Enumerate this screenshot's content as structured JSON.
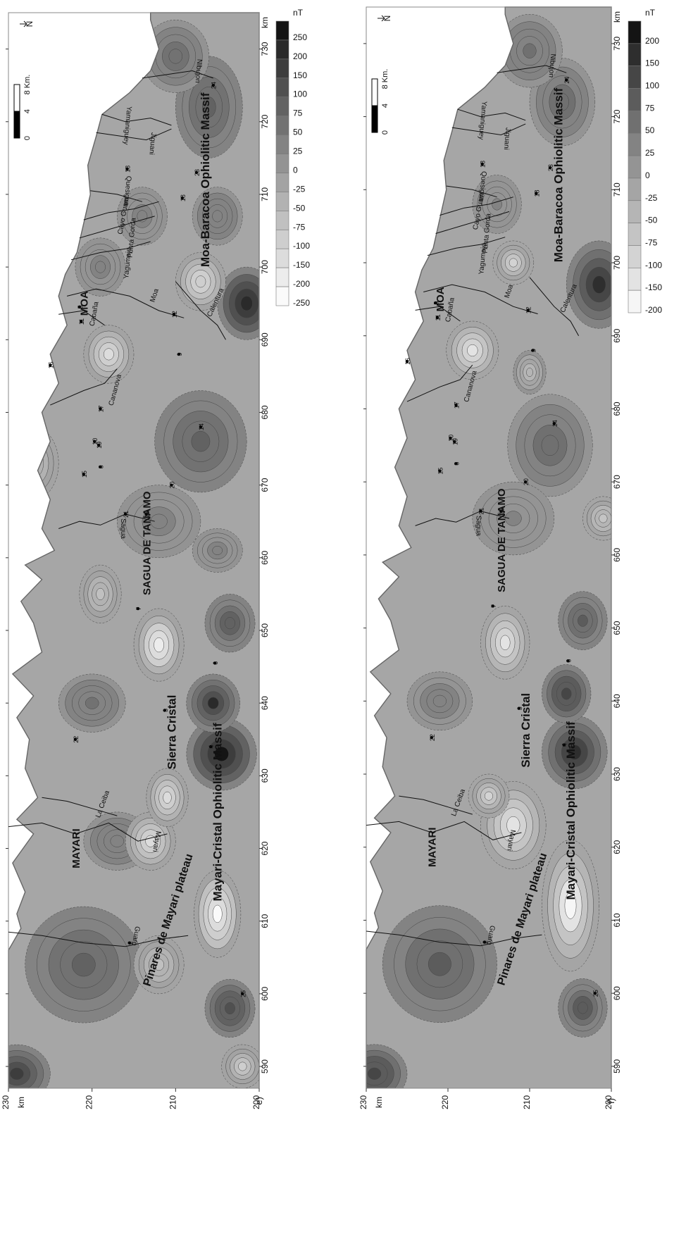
{
  "maps": [
    {
      "panel_label": "e)",
      "units": "nT",
      "axis_unit": "km",
      "easting_ticks": [
        "590",
        "600",
        "610",
        "620",
        "630",
        "640",
        "650",
        "660",
        "670",
        "680",
        "690",
        "700",
        "710",
        "720",
        "730"
      ],
      "northing_ticks": [
        "230",
        "220",
        "210",
        "200"
      ],
      "legend_values": [
        "250",
        "200",
        "150",
        "100",
        "75",
        "50",
        "25",
        "0",
        "-25",
        "-50",
        "-75",
        "-100",
        "-150",
        "-200",
        "-250"
      ],
      "legend_colors": [
        "#141414",
        "#2a2a2a",
        "#3d3d3d",
        "#505050",
        "#626262",
        "#727272",
        "#838383",
        "#939393",
        "#a3a3a3",
        "#b2b2b2",
        "#c0c0c0",
        "#cecece",
        "#dcdcdc",
        "#ececec",
        "#fafafa"
      ],
      "scale_labels": [
        "0",
        "4",
        "8 Km."
      ],
      "north_label": "N",
      "region_labels": [
        "MAYARI",
        "SAGUA DE TANAMO",
        "MOA",
        "Sierra Cristal",
        "Moa-Baracoa Ophiolitic Massif",
        "Mayari-Cristal Ophiolitic Massif",
        "Pinares de Mayari plateau"
      ],
      "river_labels": [
        "Guaro",
        "Mayari",
        "La Ceiba",
        "Sagua",
        "Cananova",
        "Moa",
        "Cabaña",
        "Calentura",
        "Yagumaje",
        "Punta Gorda",
        "Cayo Guam",
        "Quesigua",
        "Jiguani",
        "Yamaniguey",
        "Nibujon"
      ],
      "station_labels": [
        "2",
        "3",
        "4",
        "5",
        "6",
        "7",
        "8",
        "9",
        "10",
        "11",
        "12",
        "13",
        "14",
        "15",
        "16",
        "17",
        "18",
        "18",
        "19",
        "20",
        "21",
        "22",
        "23",
        "24",
        "25"
      ]
    },
    {
      "panel_label": "f)",
      "units": "nT",
      "axis_unit": "km",
      "easting_ticks": [
        "590",
        "600",
        "610",
        "620",
        "630",
        "640",
        "650",
        "660",
        "670",
        "680",
        "690",
        "700",
        "710",
        "720",
        "730"
      ],
      "northing_ticks": [
        "230",
        "220",
        "210",
        "200"
      ],
      "legend_values": [
        "200",
        "150",
        "100",
        "75",
        "50",
        "25",
        "0",
        "-25",
        "-50",
        "-75",
        "-100",
        "-150",
        "-200"
      ],
      "legend_colors": [
        "#141414",
        "#2e2e2e",
        "#464646",
        "#5c5c5c",
        "#707070",
        "#838383",
        "#949494",
        "#a5a5a5",
        "#b5b5b5",
        "#c4c4c4",
        "#d3d3d3",
        "#e3e3e3",
        "#f6f6f6"
      ],
      "scale_labels": [
        "0",
        "4",
        "8 Km."
      ],
      "north_label": "N",
      "region_labels": [
        "MAYARI",
        "SAGUA DE TANAMO",
        "MOA",
        "Sierra Cristal",
        "Moa-Baracoa Ophiolitic Massif",
        "Mayari-Cristal Ophiolitic Massif",
        "Pinares de Mayari plateau"
      ],
      "river_labels": [
        "Guaro",
        "Mayari",
        "La Ceiba",
        "Sagua",
        "Cananova",
        "Moa",
        "Cabaña",
        "Calentura",
        "Yagumaje",
        "Punta Gorda",
        "Cayo Guam",
        "Quesigua",
        "Jiguani",
        "Yamaniguey",
        "Nibujon"
      ],
      "station_labels": [
        "2",
        "3",
        "4",
        "5",
        "6",
        "7",
        "8",
        "9",
        "10",
        "11",
        "12",
        "13",
        "14",
        "15",
        "16",
        "17",
        "18",
        "18",
        "19",
        "20",
        "21",
        "22",
        "23",
        "24",
        "25"
      ]
    }
  ]
}
